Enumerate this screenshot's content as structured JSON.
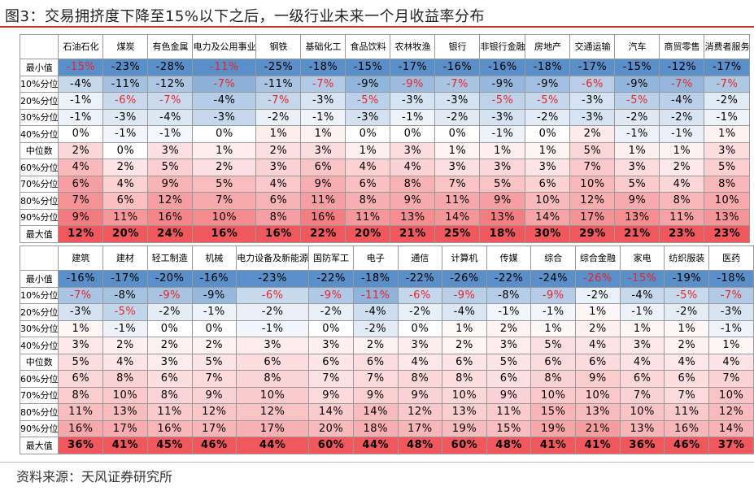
{
  "title": "图3：交易拥挤度下降至15%以下之后，一级行业未来一个月收益率分布",
  "source": "资料来源：天风证券研究所",
  "colors": {
    "neg_text": "#e8242a",
    "low_fill": "#5b8fc9",
    "high_fill": "#f0585d",
    "mid_fill": "#ffffff",
    "rule": "#c0392b"
  },
  "row_labels": [
    "最小值",
    "10%分位",
    "20%分位",
    "30%分位",
    "40%分位",
    "中位数",
    "60%分位",
    "70%分位",
    "80%分位",
    "90%分位",
    "最大值"
  ],
  "panels": [
    {
      "industries": [
        "石油石化",
        "煤炭",
        "有色金属",
        "电力及公用事业",
        "钢铁",
        "基础化工",
        "食品饮料",
        "农林牧渔",
        "银行",
        "非银行金融",
        "房地产",
        "交通运输",
        "汽车",
        "商贸零售",
        "消费者服务"
      ],
      "cells": [
        [
          "-15%",
          "-23%",
          "-28%",
          "-11%",
          "-25%",
          "-18%",
          "-15%",
          "-17%",
          "-16%",
          "-16%",
          "-18%",
          "-17%",
          "-15%",
          "-12%",
          "-17%"
        ],
        [
          "-4%",
          "-11%",
          "-12%",
          "-7%",
          "-11%",
          "-7%",
          "-9%",
          "-9%",
          "-7%",
          "-9%",
          "-9%",
          "-6%",
          "-9%",
          "-7%",
          "-7%"
        ],
        [
          "-1%",
          "-6%",
          "-7%",
          "-4%",
          "-7%",
          "-3%",
          "-5%",
          "-3%",
          "-3%",
          "-5%",
          "-5%",
          "-3%",
          "-5%",
          "-4%",
          "-2%"
        ],
        [
          "-1%",
          "-3%",
          "-4%",
          "-3%",
          "-2%",
          "-1%",
          "-3%",
          "-1%",
          "-2%",
          "-3%",
          "-2%",
          "-3%",
          "-2%",
          "-2%",
          "-1%"
        ],
        [
          "0%",
          "-1%",
          "-1%",
          "0%",
          "1%",
          "1%",
          "0%",
          "0%",
          "0%",
          "-1%",
          "0%",
          "2%",
          "-1%",
          "-1%",
          "1%"
        ],
        [
          "2%",
          "0%",
          "3%",
          "1%",
          "2%",
          "3%",
          "1%",
          "3%",
          "1%",
          "1%",
          "1%",
          "5%",
          "1%",
          "1%",
          "3%"
        ],
        [
          "4%",
          "2%",
          "5%",
          "2%",
          "3%",
          "6%",
          "4%",
          "4%",
          "3%",
          "3%",
          "3%",
          "7%",
          "3%",
          "2%",
          "5%"
        ],
        [
          "6%",
          "4%",
          "9%",
          "5%",
          "4%",
          "9%",
          "6%",
          "8%",
          "7%",
          "5%",
          "6%",
          "10%",
          "5%",
          "4%",
          "8%"
        ],
        [
          "7%",
          "6%",
          "12%",
          "7%",
          "6%",
          "11%",
          "8%",
          "9%",
          "11%",
          "9%",
          "10%",
          "12%",
          "9%",
          "8%",
          "10%"
        ],
        [
          "9%",
          "11%",
          "16%",
          "10%",
          "8%",
          "16%",
          "11%",
          "13%",
          "14%",
          "13%",
          "14%",
          "17%",
          "13%",
          "11%",
          "13%"
        ],
        [
          "12%",
          "20%",
          "24%",
          "16%",
          "16%",
          "22%",
          "20%",
          "21%",
          "25%",
          "18%",
          "30%",
          "29%",
          "21%",
          "23%",
          "23%"
        ]
      ],
      "red_text": [
        [
          0,
          0
        ],
        [
          0,
          3
        ],
        [
          1,
          3
        ],
        [
          1,
          5
        ],
        [
          1,
          7
        ],
        [
          1,
          8
        ],
        [
          1,
          11
        ],
        [
          1,
          13
        ],
        [
          1,
          14
        ],
        [
          2,
          1
        ],
        [
          2,
          2
        ],
        [
          2,
          4
        ],
        [
          2,
          6
        ],
        [
          2,
          9
        ],
        [
          2,
          10
        ],
        [
          2,
          12
        ]
      ]
    },
    {
      "industries": [
        "建筑",
        "建材",
        "轻工制造",
        "机械",
        "电力设备及新能源",
        "国防军工",
        "电子",
        "通信",
        "计算机",
        "传媒",
        "综合",
        "综合金融",
        "家电",
        "纺织服装",
        "医药"
      ],
      "cells": [
        [
          "-16%",
          "-17%",
          "-20%",
          "-16%",
          "-23%",
          "-22%",
          "-18%",
          "-22%",
          "-26%",
          "-22%",
          "-24%",
          "-26%",
          "-15%",
          "-19%",
          "-18%"
        ],
        [
          "-7%",
          "-8%",
          "-9%",
          "-9%",
          "-6%",
          "-9%",
          "-11%",
          "-6%",
          "-9%",
          "-8%",
          "-9%",
          "-2%",
          "-4%",
          "-5%",
          "-7%"
        ],
        [
          "-3%",
          "-5%",
          "-2%",
          "-1%",
          "-2%",
          "-2%",
          "-4%",
          "-2%",
          "-4%",
          "-1%",
          "-1%",
          "1%",
          "-1%",
          "-2%",
          "-3%"
        ],
        [
          "1%",
          "-1%",
          "0%",
          "0%",
          "-1%",
          "0%",
          "-2%",
          "0%",
          "1%",
          "2%",
          "1%",
          "2%",
          "1%",
          "1%",
          "-1%"
        ],
        [
          "3%",
          "2%",
          "2%",
          "2%",
          "3%",
          "3%",
          "2%",
          "3%",
          "2%",
          "3%",
          "5%",
          "4%",
          "3%",
          "2%",
          "1%"
        ],
        [
          "5%",
          "4%",
          "3%",
          "5%",
          "6%",
          "6%",
          "6%",
          "4%",
          "6%",
          "5%",
          "6%",
          "6%",
          "4%",
          "4%",
          "4%"
        ],
        [
          "6%",
          "8%",
          "6%",
          "7%",
          "8%",
          "7%",
          "7%",
          "8%",
          "8%",
          "6%",
          "8%",
          "9%",
          "6%",
          "6%",
          "7%"
        ],
        [
          "8%",
          "10%",
          "8%",
          "9%",
          "10%",
          "9%",
          "9%",
          "9%",
          "10%",
          "9%",
          "10%",
          "10%",
          "7%",
          "7%",
          "10%"
        ],
        [
          "11%",
          "13%",
          "11%",
          "12%",
          "12%",
          "14%",
          "14%",
          "12%",
          "13%",
          "11%",
          "15%",
          "13%",
          "10%",
          "11%",
          "12%"
        ],
        [
          "16%",
          "17%",
          "16%",
          "17%",
          "17%",
          "20%",
          "18%",
          "17%",
          "19%",
          "15%",
          "19%",
          "21%",
          "13%",
          "16%",
          "14%"
        ],
        [
          "36%",
          "41%",
          "45%",
          "46%",
          "44%",
          "60%",
          "44%",
          "48%",
          "60%",
          "48%",
          "41%",
          "41%",
          "36%",
          "46%",
          "37%"
        ]
      ],
      "red_text": [
        [
          0,
          11
        ],
        [
          0,
          12
        ],
        [
          1,
          0
        ],
        [
          1,
          2
        ],
        [
          1,
          4
        ],
        [
          1,
          5
        ],
        [
          1,
          6
        ],
        [
          1,
          7
        ],
        [
          1,
          8
        ],
        [
          1,
          10
        ],
        [
          1,
          13
        ],
        [
          1,
          14
        ],
        [
          2,
          1
        ]
      ]
    }
  ],
  "chart_data": {
    "type": "table",
    "title": "图3：交易拥挤度下降至15%以下之后，一级行业未来一个月收益率分布",
    "rows": [
      "最小值",
      "10%分位",
      "20%分位",
      "30%分位",
      "40%分位",
      "中位数",
      "60%分位",
      "70%分位",
      "80%分位",
      "90%分位",
      "最大值"
    ],
    "tables": [
      {
        "columns": [
          "石油石化",
          "煤炭",
          "有色金属",
          "电力及公用事业",
          "钢铁",
          "基础化工",
          "食品饮料",
          "农林牧渔",
          "银行",
          "非银行金融",
          "房地产",
          "交通运输",
          "汽车",
          "商贸零售",
          "消费者服务"
        ],
        "values": [
          [
            -15,
            -23,
            -28,
            -11,
            -25,
            -18,
            -15,
            -17,
            -16,
            -16,
            -18,
            -17,
            -15,
            -12,
            -17
          ],
          [
            -4,
            -11,
            -12,
            -7,
            -11,
            -7,
            -9,
            -9,
            -7,
            -9,
            -9,
            -6,
            -9,
            -7,
            -7
          ],
          [
            -1,
            -6,
            -7,
            -4,
            -7,
            -3,
            -5,
            -3,
            -3,
            -5,
            -5,
            -3,
            -5,
            -4,
            -2
          ],
          [
            -1,
            -3,
            -4,
            -3,
            -2,
            -1,
            -3,
            -1,
            -2,
            -3,
            -2,
            -3,
            -2,
            -2,
            -1
          ],
          [
            0,
            -1,
            -1,
            0,
            1,
            1,
            0,
            0,
            0,
            -1,
            0,
            2,
            -1,
            -1,
            1
          ],
          [
            2,
            0,
            3,
            1,
            2,
            3,
            1,
            3,
            1,
            1,
            1,
            5,
            1,
            1,
            3
          ],
          [
            4,
            2,
            5,
            2,
            3,
            6,
            4,
            4,
            3,
            3,
            3,
            7,
            3,
            2,
            5
          ],
          [
            6,
            4,
            9,
            5,
            4,
            9,
            6,
            8,
            7,
            5,
            6,
            10,
            5,
            4,
            8
          ],
          [
            7,
            6,
            12,
            7,
            6,
            11,
            8,
            9,
            11,
            9,
            10,
            12,
            9,
            8,
            10
          ],
          [
            9,
            11,
            16,
            10,
            8,
            16,
            11,
            13,
            14,
            13,
            14,
            17,
            13,
            11,
            13
          ],
          [
            12,
            20,
            24,
            16,
            16,
            22,
            20,
            21,
            25,
            18,
            30,
            29,
            21,
            23,
            23
          ]
        ]
      },
      {
        "columns": [
          "建筑",
          "建材",
          "轻工制造",
          "机械",
          "电力设备及新能源",
          "国防军工",
          "电子",
          "通信",
          "计算机",
          "传媒",
          "综合",
          "综合金融",
          "家电",
          "纺织服装",
          "医药"
        ],
        "values": [
          [
            -16,
            -17,
            -20,
            -16,
            -23,
            -22,
            -18,
            -22,
            -26,
            -22,
            -24,
            -26,
            -15,
            -19,
            -18
          ],
          [
            -7,
            -8,
            -9,
            -9,
            -6,
            -9,
            -11,
            -6,
            -9,
            -8,
            -9,
            -2,
            -4,
            -5,
            -7
          ],
          [
            -3,
            -5,
            -2,
            -1,
            -2,
            -2,
            -4,
            -2,
            -4,
            -1,
            -1,
            1,
            -1,
            -2,
            -3
          ],
          [
            1,
            -1,
            0,
            0,
            -1,
            0,
            -2,
            0,
            1,
            2,
            1,
            2,
            1,
            1,
            -1
          ],
          [
            3,
            2,
            2,
            2,
            3,
            3,
            2,
            3,
            2,
            3,
            5,
            4,
            3,
            2,
            1
          ],
          [
            5,
            4,
            3,
            5,
            6,
            6,
            6,
            4,
            6,
            5,
            6,
            6,
            4,
            4,
            4
          ],
          [
            6,
            8,
            6,
            7,
            8,
            7,
            7,
            8,
            8,
            6,
            8,
            9,
            6,
            6,
            7
          ],
          [
            8,
            10,
            8,
            9,
            10,
            9,
            9,
            9,
            10,
            9,
            10,
            10,
            7,
            7,
            10
          ],
          [
            11,
            13,
            11,
            12,
            12,
            14,
            14,
            12,
            13,
            11,
            15,
            13,
            10,
            11,
            12
          ],
          [
            16,
            17,
            16,
            17,
            17,
            20,
            18,
            17,
            19,
            15,
            19,
            21,
            13,
            16,
            14
          ],
          [
            36,
            41,
            45,
            46,
            44,
            60,
            44,
            48,
            60,
            48,
            41,
            41,
            36,
            46,
            37
          ]
        ]
      }
    ]
  }
}
